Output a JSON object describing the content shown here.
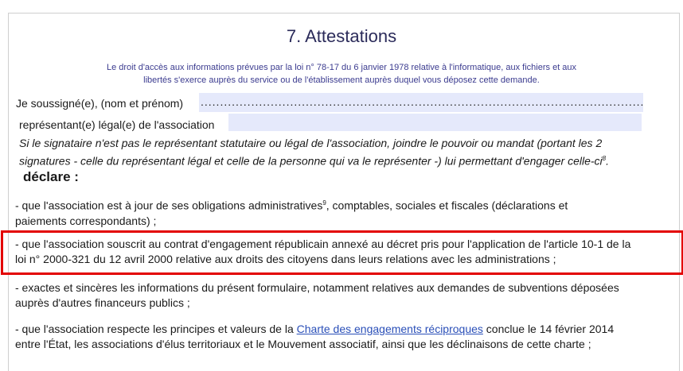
{
  "title": "7. Attestations",
  "notice": [
    "Le droit d'accès aux informations prévues par la loi n° 78-17 du 6 janvier 1978 relative à l'informatique, aux fichiers et aux",
    "libertés s'exerce auprès du service ou de l'établissement auprès duquel vous déposez cette demande."
  ],
  "fields": {
    "name_label": "Je soussigné(e), (nom et prénom)",
    "name_value": "........................................................................................................................",
    "rep_label": "représentant(e) légal(e) de l'association",
    "rep_value": ""
  },
  "signatory_note": [
    "Si le signataire n'est pas le représentant statutaire ou légal de l'association, joindre le pouvoir ou mandat (portant les 2",
    "signatures - celle du représentant légal et celle de la personne qui va le représenter -) lui permettant d'engager celle-ci",
    "8",
    "."
  ],
  "declare": "déclare :",
  "items": [
    {
      "l1a": "-  que l'association est à jour de ses obligations administratives",
      "sup": "9",
      "l1b": ", comptables, sociales et fiscales (déclarations et",
      "l2": "paiements correspondants) ;"
    },
    {
      "l1": "-  que l'association souscrit au contrat d'engagement républicain annexé au décret pris pour l'application de l'article 10-1 de la",
      "l2": "loi n° 2000-321 du 12 avril 2000 relative aux droits des citoyens dans leurs relations avec les administrations ;"
    },
    {
      "l1": "-  exactes et sincères les informations du présent formulaire, notamment relatives aux demandes de subventions déposées",
      "l2": "auprès d'autres financeurs publics ;"
    },
    {
      "l1a": "-  que l'association respecte les principes et valeurs de la ",
      "link": "Charte des engagements réciproques",
      "l1b": " conclue le 14 février 2014",
      "l2": "entre l'État, les associations d'élus territoriaux et le Mouvement associatif, ainsi que les déclinaisons de cette charte ;"
    }
  ],
  "colors": {
    "highlight_box": "#e30000",
    "field_bg": "#e5e9fb",
    "notice": "#3b3b8f",
    "link": "#2a4fb8"
  }
}
